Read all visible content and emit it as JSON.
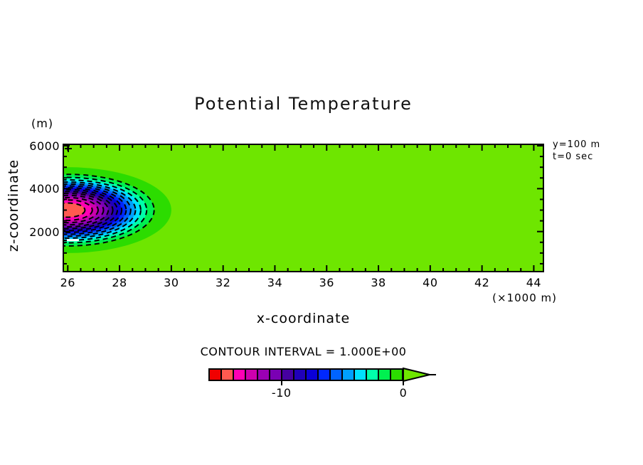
{
  "title": "Potential Temperature",
  "axes": {
    "y_unit": "(m)",
    "y_label": "z-coordinate",
    "x_label": "x-coordinate",
    "x_unit": "(×1000 m)",
    "x_ticks": [
      {
        "label": "26",
        "value": 26
      },
      {
        "label": "28",
        "value": 28
      },
      {
        "label": "30",
        "value": 30
      },
      {
        "label": "32",
        "value": 32
      },
      {
        "label": "34",
        "value": 34
      },
      {
        "label": "36",
        "value": 36
      },
      {
        "label": "38",
        "value": 38
      },
      {
        "label": "40",
        "value": 40
      },
      {
        "label": "42",
        "value": 42
      },
      {
        "label": "44",
        "value": 44
      }
    ],
    "y_ticks": [
      {
        "label": "2000",
        "value": 2000
      },
      {
        "label": "4000",
        "value": 4000
      },
      {
        "label": "6000",
        "value": 6000
      }
    ]
  },
  "annotations": {
    "line1": "y=100 m",
    "line2": "t=0 sec"
  },
  "colorbar": {
    "title": "CONTOUR INTERVAL = 1.000E+00",
    "colors": [
      "#f00000",
      "#ff5a50",
      "#ff00b4",
      "#cd00ad",
      "#9b00b4",
      "#7a00b4",
      "#4600a0",
      "#2000b9",
      "#0a00d7",
      "#0028ff",
      "#0064ff",
      "#00a0ff",
      "#00e1ff",
      "#00ffaa",
      "#00f050",
      "#2cdc00"
    ],
    "arrow_color": "#6ee600",
    "labels": [
      {
        "text": "-10",
        "frac": 0.375
      },
      {
        "text": "0",
        "frac": 1.0
      }
    ]
  },
  "chart_data": {
    "type": "heatmap",
    "title": "Potential Temperature",
    "xlabel": "x-coordinate (×1000 m)",
    "ylabel": "z-coordinate (m)",
    "xlim": [
      25.8,
      44.4
    ],
    "ylim": [
      100,
      6100
    ],
    "x_major_ticks": [
      26,
      28,
      30,
      32,
      34,
      36,
      38,
      40,
      42,
      44
    ],
    "x_minor_step": 0.5,
    "y_major_ticks": [
      2000,
      4000,
      6000
    ],
    "y_minor_step": 500,
    "contour_interval": 1.0,
    "colorbar_range": [
      -16,
      0
    ],
    "colorbar_label_values": [
      -10,
      0
    ],
    "background_value": 0,
    "background_color": "#6ee600",
    "slice": "y=100 m",
    "time": "t=0 sec",
    "bubble": {
      "description": "cold bubble perturbation, filled contour bands every 1.0 from 0 down to -15, cut by left axis",
      "center_x": 26,
      "center_z": 3000,
      "radius_x_km": 4,
      "radius_z_m": 2000,
      "min_value": -15,
      "band_fractions": [
        1,
        0.834,
        0.762,
        0.705,
        0.654,
        0.608,
        0.564,
        0.521,
        0.479,
        0.435,
        0.391,
        0.345,
        0.293,
        0.237,
        0.166
      ],
      "contour_levels": [
        -1,
        -2,
        -3,
        -4,
        -5,
        -6,
        -7,
        -8,
        -9,
        -10,
        -11,
        -12,
        -13,
        -14
      ],
      "line_style": "dashed-black"
    },
    "min_marker": {
      "shape": "white-dash",
      "x": 26.1,
      "z": 1600
    }
  }
}
